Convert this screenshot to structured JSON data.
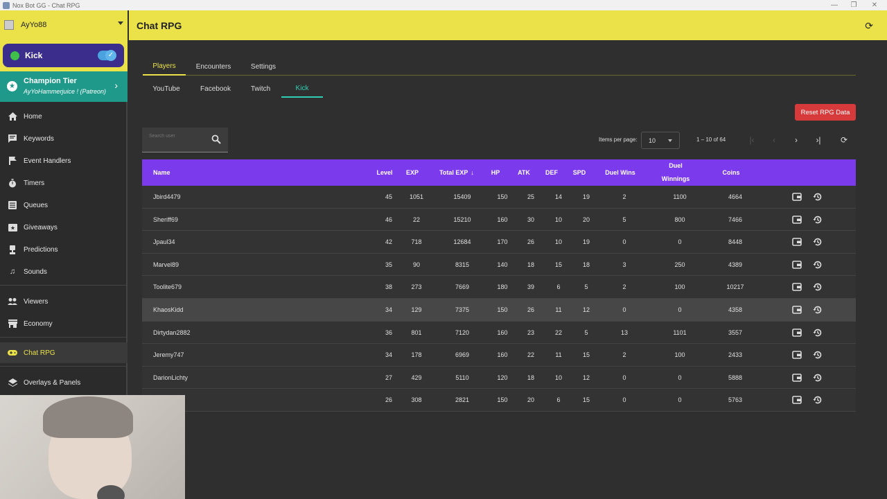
{
  "window": {
    "title": "Nox Bot GG - Chat RPG",
    "minimize": "—",
    "maximize": "❐",
    "close": "✕"
  },
  "sidebar": {
    "username": "AyYo88",
    "platform": "Kick",
    "tier": {
      "title": "Champion Tier",
      "subtitle": "AyYoHammerjuice ! (Patreon)"
    },
    "items": [
      {
        "label": "Home",
        "icon": "home-icon"
      },
      {
        "label": "Keywords",
        "icon": "message-icon"
      },
      {
        "label": "Event Handlers",
        "icon": "flag-icon"
      },
      {
        "label": "Timers",
        "icon": "stopwatch-icon"
      },
      {
        "label": "Queues",
        "icon": "list-icon"
      },
      {
        "label": "Giveaways",
        "icon": "ticket-icon"
      },
      {
        "label": "Predictions",
        "icon": "trophy-icon"
      },
      {
        "label": "Sounds",
        "icon": "music-icon"
      },
      {
        "label": "Viewers",
        "icon": "people-icon"
      },
      {
        "label": "Economy",
        "icon": "store-icon"
      },
      {
        "label": "Chat RPG",
        "icon": "gamepad-icon"
      },
      {
        "label": "Overlays & Panels",
        "icon": "layers-icon"
      }
    ]
  },
  "header": {
    "title": "Chat RPG"
  },
  "tabs": [
    "Players",
    "Encounters",
    "Settings"
  ],
  "platform_tabs": [
    "YouTube",
    "Facebook",
    "Twitch",
    "Kick"
  ],
  "reset_label": "Reset RPG Data",
  "search": {
    "placeholder": "Search user"
  },
  "pager": {
    "items_per_page_label": "Items per page:",
    "items_per_page": "10",
    "range": "1 – 10 of 64"
  },
  "table": {
    "headers": {
      "name": "Name",
      "level": "Level",
      "exp": "EXP",
      "total_exp": "Total EXP",
      "sort_arrow": "↓",
      "hp": "HP",
      "atk": "ATK",
      "def": "DEF",
      "spd": "SPD",
      "duel_wins": "Duel Wins",
      "duel_winnings": "Duel Winnings",
      "coins": "Coins"
    },
    "rows": [
      {
        "name": "Jbird4479",
        "level": "45",
        "exp": "1051",
        "total_exp": "15409",
        "hp": "150",
        "atk": "25",
        "def": "14",
        "spd": "19",
        "duel_wins": "2",
        "duel_winnings": "1100",
        "coins": "4664"
      },
      {
        "name": "Sheriff69",
        "level": "46",
        "exp": "22",
        "total_exp": "15210",
        "hp": "160",
        "atk": "30",
        "def": "10",
        "spd": "20",
        "duel_wins": "5",
        "duel_winnings": "800",
        "coins": "7466"
      },
      {
        "name": "Jpaul34",
        "level": "42",
        "exp": "718",
        "total_exp": "12684",
        "hp": "170",
        "atk": "26",
        "def": "10",
        "spd": "19",
        "duel_wins": "0",
        "duel_winnings": "0",
        "coins": "8448"
      },
      {
        "name": "Marvel89",
        "level": "35",
        "exp": "90",
        "total_exp": "8315",
        "hp": "140",
        "atk": "18",
        "def": "15",
        "spd": "18",
        "duel_wins": "3",
        "duel_winnings": "250",
        "coins": "4389"
      },
      {
        "name": "Toolite679",
        "level": "38",
        "exp": "273",
        "total_exp": "7669",
        "hp": "180",
        "atk": "39",
        "def": "6",
        "spd": "5",
        "duel_wins": "2",
        "duel_winnings": "100",
        "coins": "10217"
      },
      {
        "name": "KhaosKidd",
        "level": "34",
        "exp": "129",
        "total_exp": "7375",
        "hp": "150",
        "atk": "26",
        "def": "11",
        "spd": "12",
        "duel_wins": "0",
        "duel_winnings": "0",
        "coins": "4358"
      },
      {
        "name": "Dirtydan2882",
        "level": "36",
        "exp": "801",
        "total_exp": "7120",
        "hp": "160",
        "atk": "23",
        "def": "22",
        "spd": "5",
        "duel_wins": "13",
        "duel_winnings": "1101",
        "coins": "3557"
      },
      {
        "name": "Jeremy747",
        "level": "34",
        "exp": "178",
        "total_exp": "6969",
        "hp": "160",
        "atk": "22",
        "def": "11",
        "spd": "15",
        "duel_wins": "2",
        "duel_winnings": "100",
        "coins": "2433"
      },
      {
        "name": "DarionLichty",
        "level": "27",
        "exp": "429",
        "total_exp": "5110",
        "hp": "120",
        "atk": "18",
        "def": "10",
        "spd": "12",
        "duel_wins": "0",
        "duel_winnings": "0",
        "coins": "5888"
      },
      {
        "name": "",
        "level": "26",
        "exp": "308",
        "total_exp": "2821",
        "hp": "150",
        "atk": "20",
        "def": "6",
        "spd": "15",
        "duel_wins": "0",
        "duel_winnings": "0",
        "coins": "5763"
      }
    ]
  },
  "colors": {
    "accent_yellow": "#ebe24a",
    "table_header": "#7c3aed",
    "kick_tab": "#2fd0b5",
    "reset_red": "#d63a3a",
    "tier_teal": "#1f9a8a"
  }
}
